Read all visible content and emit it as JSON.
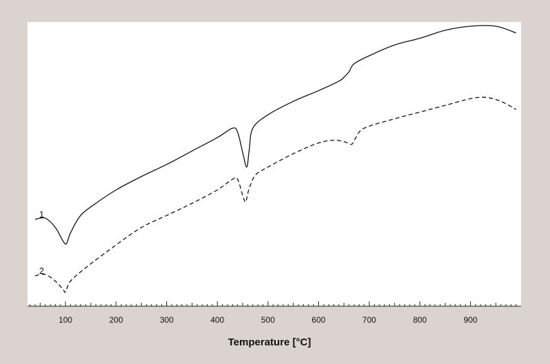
{
  "chart_data": {
    "type": "line",
    "title": "",
    "xlabel": "Temperature [°C]",
    "ylabel": "",
    "xlim": [
      25,
      1000
    ],
    "ylim": [
      0,
      100
    ],
    "x_ticks": [
      100,
      200,
      300,
      400,
      500,
      600,
      700,
      800,
      900
    ],
    "grid": false,
    "series": [
      {
        "name": "1",
        "style": "solid",
        "points": [
          [
            40,
            29
          ],
          [
            60,
            29.5
          ],
          [
            80,
            26
          ],
          [
            95,
            21
          ],
          [
            102,
            20
          ],
          [
            110,
            24
          ],
          [
            130,
            30.5
          ],
          [
            160,
            35
          ],
          [
            200,
            40
          ],
          [
            250,
            45
          ],
          [
            300,
            49.5
          ],
          [
            350,
            54.5
          ],
          [
            400,
            59.5
          ],
          [
            430,
            63
          ],
          [
            440,
            61.5
          ],
          [
            450,
            54
          ],
          [
            458,
            48.5
          ],
          [
            463,
            55
          ],
          [
            470,
            63
          ],
          [
            500,
            68
          ],
          [
            550,
            73
          ],
          [
            600,
            77
          ],
          [
            640,
            80.5
          ],
          [
            650,
            82
          ],
          [
            660,
            84
          ],
          [
            670,
            87
          ],
          [
            700,
            90
          ],
          [
            750,
            94
          ],
          [
            800,
            96.5
          ],
          [
            850,
            99.5
          ],
          [
            900,
            101
          ],
          [
            950,
            101
          ],
          [
            990,
            98.5
          ]
        ]
      },
      {
        "name": "2",
        "style": "dashed",
        "points": [
          [
            40,
            8
          ],
          [
            60,
            8.5
          ],
          [
            80,
            6
          ],
          [
            95,
            3
          ],
          [
            100,
            2
          ],
          [
            110,
            6
          ],
          [
            140,
            11
          ],
          [
            200,
            19.5
          ],
          [
            250,
            26
          ],
          [
            300,
            30.5
          ],
          [
            350,
            35
          ],
          [
            400,
            40
          ],
          [
            430,
            44
          ],
          [
            440,
            44
          ],
          [
            450,
            38
          ],
          [
            456,
            35.5
          ],
          [
            462,
            40
          ],
          [
            475,
            45.5
          ],
          [
            500,
            48.5
          ],
          [
            550,
            53.5
          ],
          [
            600,
            57.5
          ],
          [
            630,
            58.5
          ],
          [
            650,
            58
          ],
          [
            665,
            57
          ],
          [
            672,
            59
          ],
          [
            690,
            63
          ],
          [
            750,
            66.5
          ],
          [
            800,
            69
          ],
          [
            850,
            71.5
          ],
          [
            900,
            74
          ],
          [
            930,
            74.5
          ],
          [
            960,
            73
          ],
          [
            990,
            70
          ]
        ]
      }
    ]
  }
}
